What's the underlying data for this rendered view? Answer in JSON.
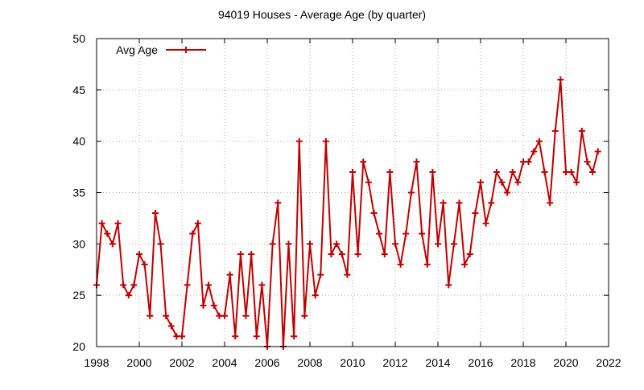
{
  "chart_data": {
    "type": "line",
    "title": "94019 Houses - Average Age (by quarter)",
    "xlabel": "",
    "ylabel": "",
    "xlim": [
      1998,
      2022
    ],
    "ylim": [
      20,
      50
    ],
    "x_ticks": [
      "1998",
      "2000",
      "2002",
      "2004",
      "2006",
      "2008",
      "2010",
      "2012",
      "2014",
      "2016",
      "2018",
      "2020",
      "2022"
    ],
    "y_ticks": [
      "20",
      "25",
      "30",
      "35",
      "40",
      "45",
      "50"
    ],
    "grid": true,
    "legend_position": "top-left",
    "series": [
      {
        "name": "Avg Age",
        "color": "#c00000",
        "marker": "plus",
        "x": [
          1998.0,
          1998.25,
          1998.5,
          1998.75,
          1999.0,
          1999.25,
          1999.5,
          1999.75,
          2000.0,
          2000.25,
          2000.5,
          2000.75,
          2001.0,
          2001.25,
          2001.5,
          2001.75,
          2002.0,
          2002.25,
          2002.5,
          2002.75,
          2003.0,
          2003.25,
          2003.5,
          2003.75,
          2004.0,
          2004.25,
          2004.5,
          2004.75,
          2005.0,
          2005.25,
          2005.5,
          2005.75,
          2006.0,
          2006.25,
          2006.5,
          2006.75,
          2007.0,
          2007.25,
          2007.5,
          2007.75,
          2008.0,
          2008.25,
          2008.5,
          2008.75,
          2009.0,
          2009.25,
          2009.5,
          2009.75,
          2010.0,
          2010.25,
          2010.5,
          2010.75,
          2011.0,
          2011.25,
          2011.5,
          2011.75,
          2012.0,
          2012.25,
          2012.5,
          2012.75,
          2013.0,
          2013.25,
          2013.5,
          2013.75,
          2014.0,
          2014.25,
          2014.5,
          2014.75,
          2015.0,
          2015.25,
          2015.5,
          2015.75,
          2016.0,
          2016.25,
          2016.5,
          2016.75,
          2017.0,
          2017.25,
          2017.5,
          2017.75,
          2018.0,
          2018.25,
          2018.5,
          2018.75,
          2019.0,
          2019.25,
          2019.5,
          2019.75,
          2020.0,
          2020.25,
          2020.5,
          2020.75,
          2021.0,
          2021.25,
          2021.5
        ],
        "y": [
          26,
          32,
          31,
          30,
          32,
          26,
          25,
          26,
          29,
          28,
          23,
          33,
          30,
          23,
          22,
          21,
          21,
          26,
          31,
          32,
          24,
          26,
          24,
          23,
          23,
          27,
          21,
          29,
          23,
          29,
          21,
          26,
          20,
          30,
          34,
          20,
          30,
          21,
          40,
          23,
          30,
          25,
          27,
          40,
          29,
          30,
          29,
          27,
          37,
          29,
          38,
          36,
          33,
          31,
          29,
          37,
          30,
          28,
          31,
          35,
          38,
          31,
          28,
          37,
          30,
          34,
          26,
          30,
          34,
          28,
          29,
          33,
          36,
          32,
          34,
          37,
          36,
          35,
          37,
          36,
          38,
          38,
          39,
          40,
          37,
          34,
          41,
          46,
          37,
          37,
          36,
          41,
          38,
          37,
          39
        ]
      }
    ]
  }
}
